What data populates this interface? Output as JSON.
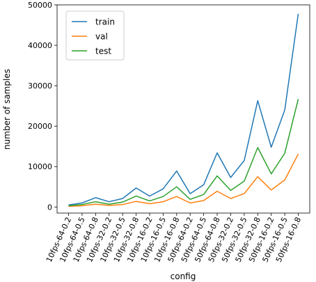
{
  "chart_data": {
    "type": "line",
    "title": "",
    "xlabel": "config",
    "ylabel": "number of samples",
    "ylim": [
      -1500,
      50000
    ],
    "yticks": [
      0,
      10000,
      20000,
      30000,
      40000,
      50000
    ],
    "grid": false,
    "legend_position": "top-left",
    "categories": [
      "10fps-64-0.2",
      "10fps-64-0.5",
      "10fps-64-0.8",
      "10fps-32-0.2",
      "10fps-32-0.5",
      "10fps-32-0.8",
      "10fps-16-0.2",
      "10fps-16-0.5",
      "10fps-16-0.8",
      "50fps-64-0.2",
      "50fps-64-0.5",
      "50fps-64-0.8",
      "50fps-32-0.2",
      "50fps-32-0.5",
      "50fps-32-0.8",
      "50fps-16-0.2",
      "50fps-16-0.5",
      "50fps-16-0.8"
    ],
    "series": [
      {
        "name": "train",
        "color": "#1f77b4",
        "values": [
          500,
          1000,
          2300,
          1300,
          2100,
          4700,
          2700,
          4500,
          8900,
          3300,
          5500,
          13400,
          7300,
          11500,
          26300,
          14800,
          24000,
          47800
        ]
      },
      {
        "name": "val",
        "color": "#ff7f0e",
        "values": [
          150,
          300,
          700,
          400,
          600,
          1400,
          800,
          1300,
          2600,
          1000,
          1600,
          3900,
          2100,
          3300,
          7500,
          4200,
          6700,
          13100
        ]
      },
      {
        "name": "test",
        "color": "#2ca02c",
        "values": [
          300,
          600,
          1300,
          700,
          1200,
          2700,
          1500,
          2600,
          5000,
          1900,
          3100,
          7700,
          4100,
          6400,
          14700,
          8200,
          13300,
          26700
        ]
      }
    ]
  }
}
